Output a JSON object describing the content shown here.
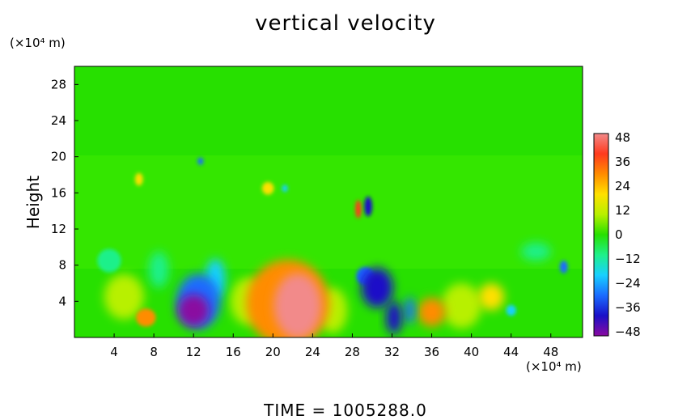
{
  "chart_data": {
    "type": "heatmap",
    "title": "vertical velocity",
    "ylabel": "Height",
    "y_unit_label": "(×10⁴ m)",
    "x_unit_label": "(×10⁴ m)",
    "xlim": [
      0,
      51.2
    ],
    "ylim": [
      0,
      30
    ],
    "xticks": [
      "4",
      "8",
      "12",
      "16",
      "20",
      "24",
      "28",
      "32",
      "36",
      "40",
      "44",
      "48"
    ],
    "xtick_values": [
      4,
      8,
      12,
      16,
      20,
      24,
      28,
      32,
      36,
      40,
      44,
      48
    ],
    "yticks": [
      "4",
      "8",
      "12",
      "16",
      "20",
      "24",
      "28"
    ],
    "ytick_values": [
      4,
      8,
      12,
      16,
      20,
      24,
      28
    ],
    "colorbar": {
      "min": -48,
      "max": 48,
      "ticks": [
        "48",
        "36",
        "24",
        "12",
        "0",
        "−12",
        "−24",
        "−36",
        "−48"
      ],
      "tick_values": [
        48,
        36,
        24,
        12,
        0,
        -12,
        -24,
        -36,
        -48
      ],
      "colors": [
        "#f28a8a",
        "#ff3a1e",
        "#ff8c00",
        "#ffe000",
        "#b8f000",
        "#27e000",
        "#1ef08a",
        "#18d0ff",
        "#1a6cff",
        "#1a10c8",
        "#8a0aa0"
      ]
    },
    "features": [
      {
        "x": 22.5,
        "y": 3.5,
        "value": 44,
        "rx": 2.4,
        "ry": 3.6
      },
      {
        "x": 21.5,
        "y": 3.8,
        "value": 28,
        "rx": 4.2,
        "ry": 4.8
      },
      {
        "x": 12,
        "y": 3,
        "value": -46,
        "rx": 1.6,
        "ry": 1.8
      },
      {
        "x": 12.5,
        "y": 4,
        "value": -28,
        "rx": 2.2,
        "ry": 3.0
      },
      {
        "x": 14.2,
        "y": 6.5,
        "value": -20,
        "rx": 1.0,
        "ry": 2.2
      },
      {
        "x": 7.2,
        "y": 2.2,
        "value": 30,
        "rx": 1.0,
        "ry": 1.0
      },
      {
        "x": 36,
        "y": 2.8,
        "value": 30,
        "rx": 1.4,
        "ry": 1.6
      },
      {
        "x": 42,
        "y": 4.5,
        "value": 22,
        "rx": 1.3,
        "ry": 1.5
      },
      {
        "x": 32.2,
        "y": 2.2,
        "value": -36,
        "rx": 0.8,
        "ry": 1.8
      },
      {
        "x": 30.5,
        "y": 5.5,
        "value": -36,
        "rx": 1.6,
        "ry": 2.2
      },
      {
        "x": 29.3,
        "y": 6.8,
        "value": -30,
        "rx": 0.9,
        "ry": 1.0
      },
      {
        "x": 33.8,
        "y": 3.0,
        "value": -30,
        "rx": 0.5,
        "ry": 1.5
      },
      {
        "x": 29.6,
        "y": 14.5,
        "value": -36,
        "rx": 0.4,
        "ry": 1.1
      },
      {
        "x": 28.6,
        "y": 14.2,
        "value": 36,
        "rx": 0.3,
        "ry": 1.0
      },
      {
        "x": 19.5,
        "y": 16.5,
        "value": 20,
        "rx": 0.6,
        "ry": 0.7
      },
      {
        "x": 21.2,
        "y": 16.5,
        "value": -20,
        "rx": 0.3,
        "ry": 0.4
      },
      {
        "x": 6.5,
        "y": 17.5,
        "value": 22,
        "rx": 0.4,
        "ry": 0.7
      },
      {
        "x": 12.7,
        "y": 19.5,
        "value": -30,
        "rx": 0.3,
        "ry": 0.4
      },
      {
        "x": 49.3,
        "y": 7.8,
        "value": -24,
        "rx": 0.4,
        "ry": 0.7
      },
      {
        "x": 44,
        "y": 3.0,
        "value": -18,
        "rx": 0.5,
        "ry": 0.6
      },
      {
        "x": 3.5,
        "y": 8.5,
        "value": -14,
        "rx": 1.2,
        "ry": 1.3
      },
      {
        "x": 8.5,
        "y": 7.5,
        "value": -12,
        "rx": 1.0,
        "ry": 2.0
      },
      {
        "x": 46.5,
        "y": 9.5,
        "value": -12,
        "rx": 1.5,
        "ry": 1.0
      },
      {
        "x": 5.0,
        "y": 4.5,
        "value": 10,
        "rx": 2.0,
        "ry": 2.5
      },
      {
        "x": 17.5,
        "y": 4.0,
        "value": 10,
        "rx": 1.8,
        "ry": 2.6
      },
      {
        "x": 39.0,
        "y": 3.5,
        "value": 10,
        "rx": 2.0,
        "ry": 2.5
      },
      {
        "x": 26.0,
        "y": 3.0,
        "value": 8,
        "rx": 1.5,
        "ry": 2.5
      }
    ],
    "background_value": 0
  },
  "footer": {
    "time_label": "TIME  =  1005288.0"
  }
}
